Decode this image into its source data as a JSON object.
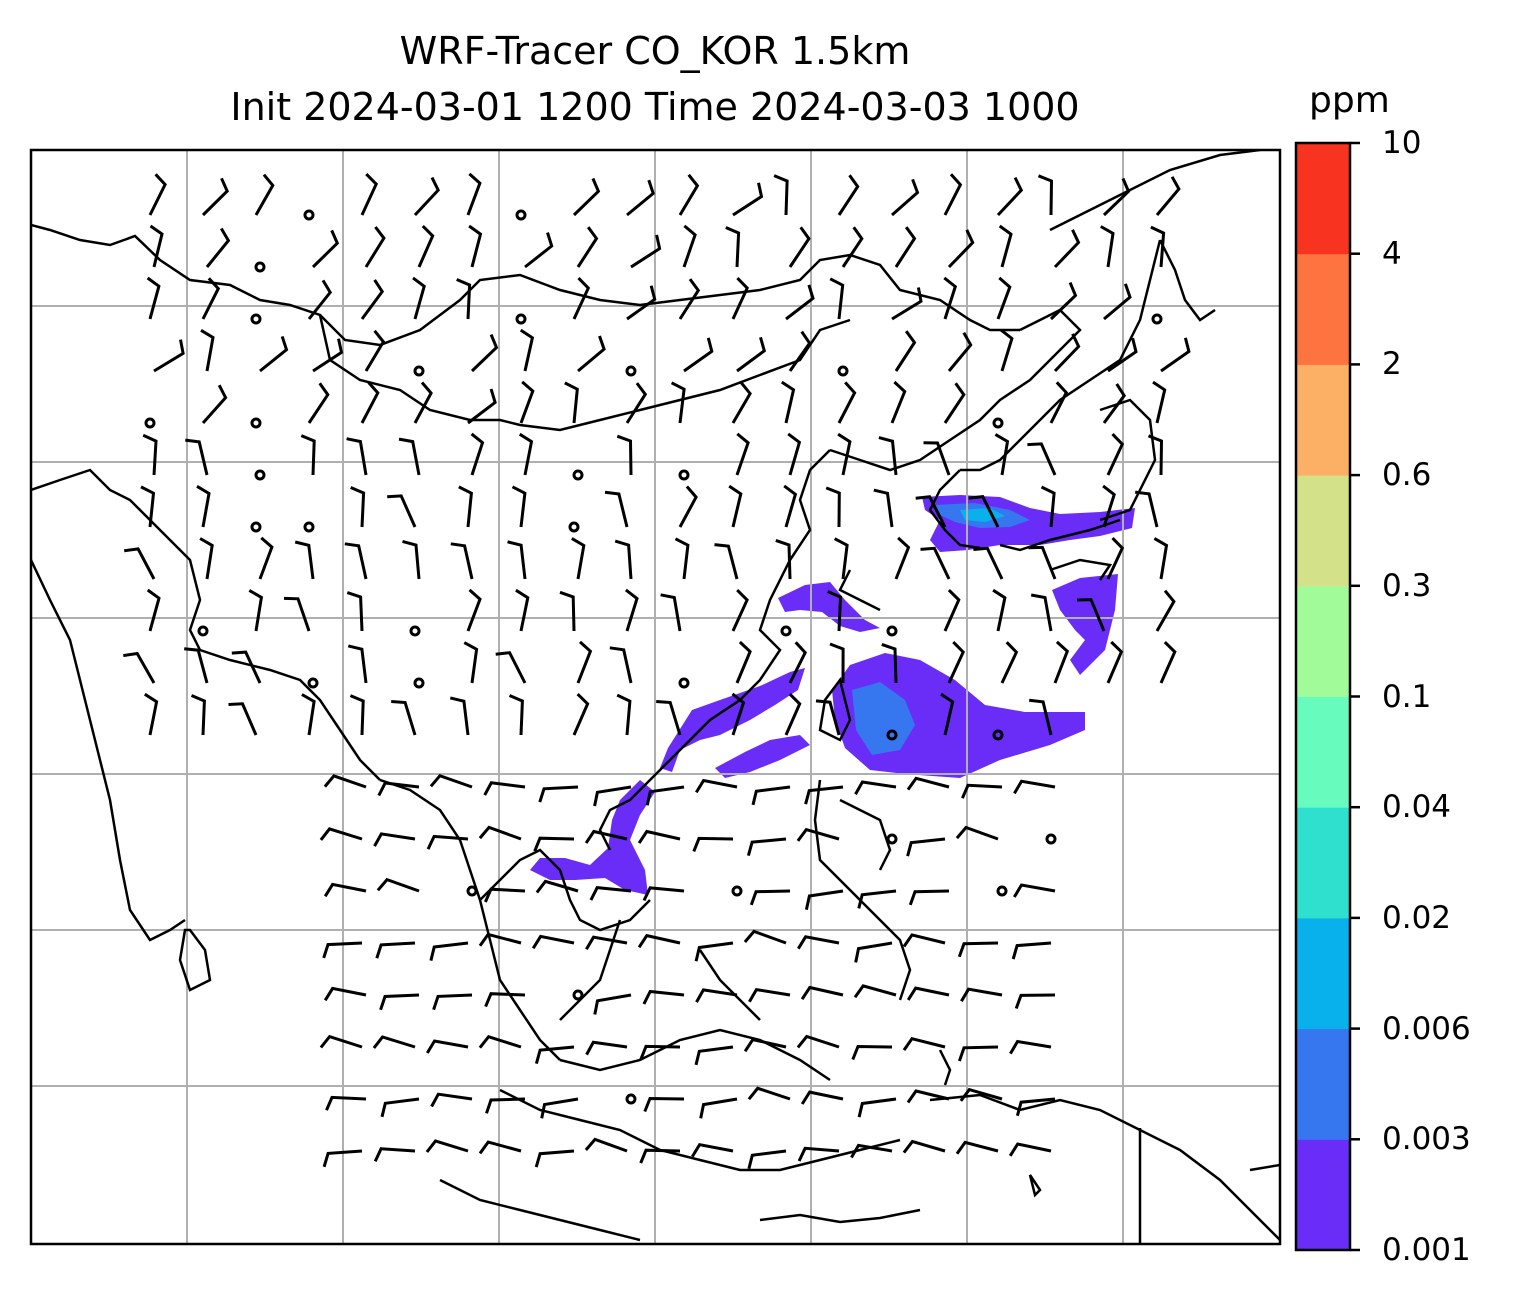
{
  "title_line1": "WRF-Tracer CO_KOR 1.5km",
  "title_line2": "Init 2024-03-01 1200 Time 2024-03-03 1000",
  "colorbar": {
    "unit": "ppm",
    "levels": [
      "0.001",
      "0.003",
      "0.006",
      "0.02",
      "0.04",
      "0.1",
      "0.3",
      "0.6",
      "2",
      "4",
      "10"
    ],
    "colors": [
      "#6a2cf7",
      "#3677f0",
      "#09b1ec",
      "#2fe0cf",
      "#68fbbe",
      "#a2fb99",
      "#d3e189",
      "#fbb065",
      "#fe7440",
      "#f83320"
    ]
  },
  "map": {
    "projection": "Lambert conformal",
    "gridlines": true,
    "features": [
      "coastlines",
      "wind-barbs",
      "tracer-concentration"
    ]
  }
}
